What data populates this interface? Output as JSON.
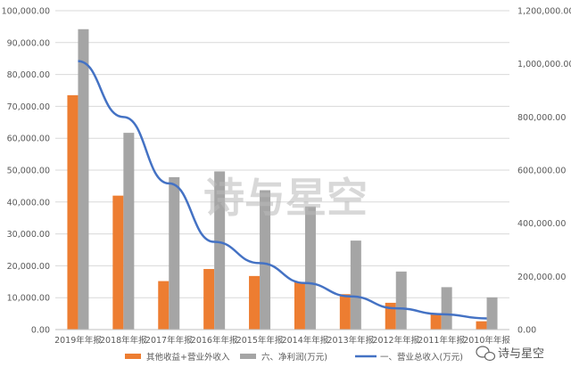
{
  "chart_data": {
    "type": "bar",
    "categories": [
      "2019年年报",
      "2018年年报",
      "2017年年报",
      "2016年年报",
      "2015年年报",
      "2014年年报",
      "2013年年报",
      "2012年年报",
      "2011年年报",
      "2010年年报"
    ],
    "series": [
      {
        "name": "其他收益+营业外收入",
        "type": "bar",
        "axis": "left",
        "color": "#ED7D31",
        "values": [
          73500,
          42000,
          15200,
          19000,
          16800,
          14900,
          11100,
          8400,
          5000,
          2600
        ]
      },
      {
        "name": "六、净利润(万元)",
        "type": "bar",
        "axis": "left",
        "color": "#A5A5A5",
        "values": [
          94200,
          61700,
          47800,
          49600,
          43700,
          38600,
          27900,
          18200,
          13300,
          10100
        ]
      },
      {
        "name": "一、营业总收入(万元)",
        "type": "line",
        "axis": "right",
        "color": "#4472C4",
        "values": [
          1010000,
          800000,
          550000,
          330000,
          250000,
          175000,
          125000,
          80000,
          58000,
          42000
        ]
      }
    ],
    "y_left": {
      "ylim": [
        0,
        100000
      ],
      "ticks": [
        "0.00",
        "10,000.00",
        "20,000.00",
        "30,000.00",
        "40,000.00",
        "50,000.00",
        "60,000.00",
        "70,000.00",
        "80,000.00",
        "90,000.00",
        "100,000.00"
      ]
    },
    "y_right": {
      "ylim": [
        0,
        1200000
      ],
      "ticks": [
        "0.00",
        "200,000.00",
        "400,000.00",
        "600,000.00",
        "800,000.00",
        "1,000,000.00",
        "1,200,000.00"
      ]
    },
    "grid": true,
    "legend_position": "bottom",
    "title": "",
    "xlabel": "",
    "ylabel": ""
  },
  "watermark": {
    "center_text": "诗与星空",
    "corner_text": "诗与星空",
    "corner_icon": "wechat-icon"
  }
}
